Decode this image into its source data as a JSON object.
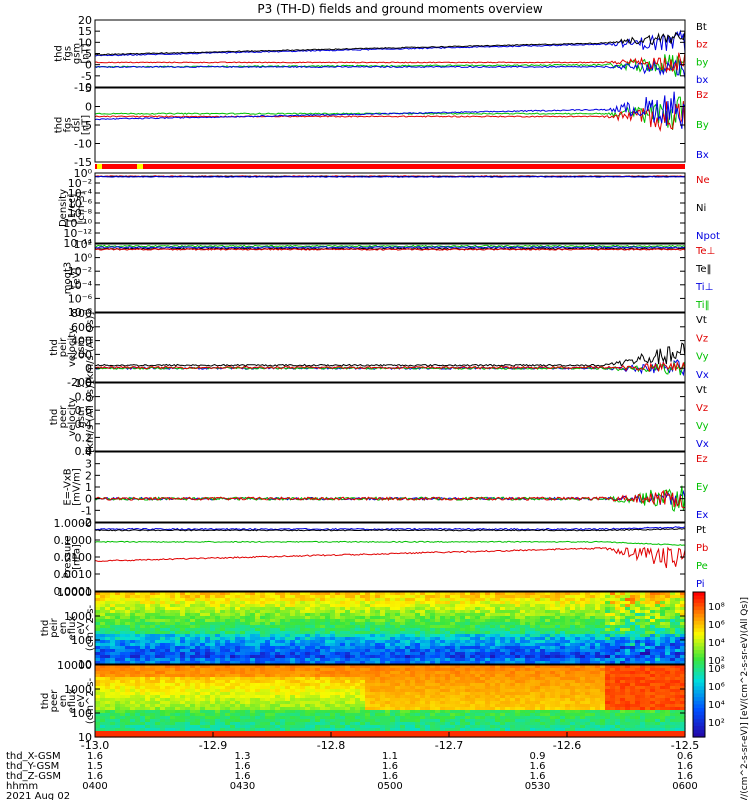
{
  "title": "P3 (TH-D) fields and ground moments overview",
  "colors": {
    "black": "#000000",
    "red": "#e00000",
    "green": "#00c000",
    "blue": "#0000e0"
  },
  "chart_data": {
    "type": "line",
    "title": "P3 (TH-D) fields and ground moments overview",
    "x_axis": {
      "range": [
        -13.0,
        -12.5
      ],
      "ticks": [
        -13.0,
        -12.9,
        -12.8,
        -12.7,
        -12.6,
        -12.5
      ],
      "tick_labels": [
        "-13.0",
        "-12.9",
        "-12.8",
        "-12.7",
        "-12.6",
        "-12.5"
      ],
      "rows": [
        {
          "name": "thd_X-GSM",
          "values": [
            "1.6",
            "1.3",
            "1.1",
            "0.9",
            "0.6"
          ]
        },
        {
          "name": "thd_Y-GSM",
          "values": [
            "1.5",
            "1.6",
            "1.6",
            "1.6",
            "1.6"
          ]
        },
        {
          "name": "thd_Z-GSM",
          "values": [
            "1.6",
            "1.6",
            "1.6",
            "1.6",
            "1.6"
          ]
        },
        {
          "name": "hhmm",
          "values": [
            "0400",
            "0430",
            "0500",
            "0530",
            "0600"
          ]
        }
      ],
      "date": "2021 Aug 02"
    },
    "panels": [
      {
        "id": "fgs-gsm",
        "ylabel": [
          "thd",
          "fgs",
          "gsm",
          "[nT]"
        ],
        "yrange": [
          -10,
          20
        ],
        "yticks": [
          "20",
          "15",
          "10",
          "5",
          "0",
          "-5",
          "-10"
        ],
        "legend": [
          {
            "name": "Bt",
            "color": "#000000"
          },
          {
            "name": "bz",
            "color": "#e00000"
          },
          {
            "name": "by",
            "color": "#00c000"
          },
          {
            "name": "bx",
            "color": "#0000e0"
          }
        ]
      },
      {
        "id": "fgs-dsl",
        "ylabel": [
          "thd",
          "fgs",
          "dsl",
          "[nT]"
        ],
        "yrange": [
          -18,
          8
        ],
        "yticks": [
          "5",
          "0",
          "-5",
          "-10",
          "-15"
        ],
        "legend": [
          {
            "name": "Bz",
            "color": "#e00000"
          },
          {
            "name": "By",
            "color": "#00c000"
          },
          {
            "name": "Bx",
            "color": "#0000e0"
          }
        ]
      },
      {
        "id": "density",
        "ylabel": [
          "Density",
          "[1/cc]",
          "[cm-3]"
        ],
        "yticks": [
          "10⁰",
          "10⁻²",
          "10⁻⁴",
          "10⁻⁶",
          "10⁻⁸",
          "10⁻¹⁰",
          "10⁻¹²",
          "10⁻¹⁴"
        ],
        "legend": [
          {
            "name": "Ne",
            "color": "#e00000"
          },
          {
            "name": "Ni",
            "color": "#000000"
          },
          {
            "name": "Npot",
            "color": "#0000e0"
          }
        ]
      },
      {
        "id": "temperature",
        "ylabel": [
          "moqt3",
          "[eV]"
        ],
        "yticks": [
          "10²",
          "10⁰",
          "10⁻²",
          "10⁻⁴",
          "10⁻⁶",
          "10⁻⁸"
        ],
        "legend": [
          {
            "name": "Te⊥",
            "color": "#e00000"
          },
          {
            "name": "Te‖",
            "color": "#000000"
          },
          {
            "name": "Ti⊥",
            "color": "#0000e0"
          },
          {
            "name": "Ti‖",
            "color": "#00c000"
          }
        ]
      },
      {
        "id": "peir-velocity",
        "ylabel": [
          "thd",
          "peir",
          "velocity",
          "gsm",
          "[km/s (All Qs)]"
        ],
        "yrange": [
          -200,
          800
        ],
        "yticks": [
          "800",
          "600",
          "400",
          "200",
          "0",
          "-200"
        ],
        "legend": [
          {
            "name": "Vt",
            "color": "#000000"
          },
          {
            "name": "Vz",
            "color": "#e00000"
          },
          {
            "name": "Vy",
            "color": "#00c000"
          },
          {
            "name": "Vx",
            "color": "#0000e0"
          }
        ]
      },
      {
        "id": "peer-velocity",
        "ylabel": [
          "thd",
          "peer",
          "velocity",
          "gsm",
          "[km/s (All Qs)]"
        ],
        "yrange": [
          0,
          1
        ],
        "yticks": [
          "1.0",
          "0.8",
          "0.6",
          "0.4",
          "0.2",
          "0.0"
        ],
        "legend": [
          {
            "name": "Vt",
            "color": "#000000"
          },
          {
            "name": "Vz",
            "color": "#e00000"
          },
          {
            "name": "Vy",
            "color": "#00c000"
          },
          {
            "name": "Vx",
            "color": "#0000e0"
          }
        ]
      },
      {
        "id": "efield",
        "ylabel": [
          "E=-VxB",
          "[mV/m]"
        ],
        "yrange": [
          -2,
          4
        ],
        "yticks": [
          "4",
          "3",
          "2",
          "1",
          "0",
          "-1",
          "-2"
        ],
        "legend": [
          {
            "name": "Ez",
            "color": "#e00000"
          },
          {
            "name": "Ey",
            "color": "#00c000"
          },
          {
            "name": "Ex",
            "color": "#0000e0"
          }
        ]
      },
      {
        "id": "pressure",
        "ylabel": [
          "Pressure",
          "[nPa]"
        ],
        "yticks": [
          "1.0000",
          "0.1000",
          "0.0100",
          "0.0010",
          "0.0001"
        ],
        "legend": [
          {
            "name": "Pt",
            "color": "#000000"
          },
          {
            "name": "Pb",
            "color": "#e00000"
          },
          {
            "name": "Pe",
            "color": "#00c000"
          },
          {
            "name": "Pi",
            "color": "#0000e0"
          }
        ]
      },
      {
        "id": "peir-spec",
        "type": "heatmap",
        "ylabel": [
          "thd",
          "peir",
          "en",
          "eflux",
          "eV",
          "(cm^2-s-",
          "sr-eV)"
        ],
        "yticks": [
          "10000",
          "1000",
          "100",
          "10"
        ]
      },
      {
        "id": "peer-spec",
        "type": "heatmap",
        "ylabel": [
          "thd",
          "peer",
          "en",
          "eflux",
          "eV",
          "(cm^2-s-",
          "sr-eV)"
        ],
        "yticks": [
          "10000",
          "1000",
          "100",
          "10"
        ]
      }
    ],
    "colorbar": {
      "label": "[eV/(cm^2-s-sr-eV)] [eV/(cm^2-s-sr-eV)(All Qs)]",
      "upper_ticks": [
        "10⁸",
        "10⁶",
        "10⁴",
        "10²"
      ],
      "lower_ticks": [
        "10⁸",
        "10⁶",
        "10⁴",
        "10²"
      ]
    }
  }
}
